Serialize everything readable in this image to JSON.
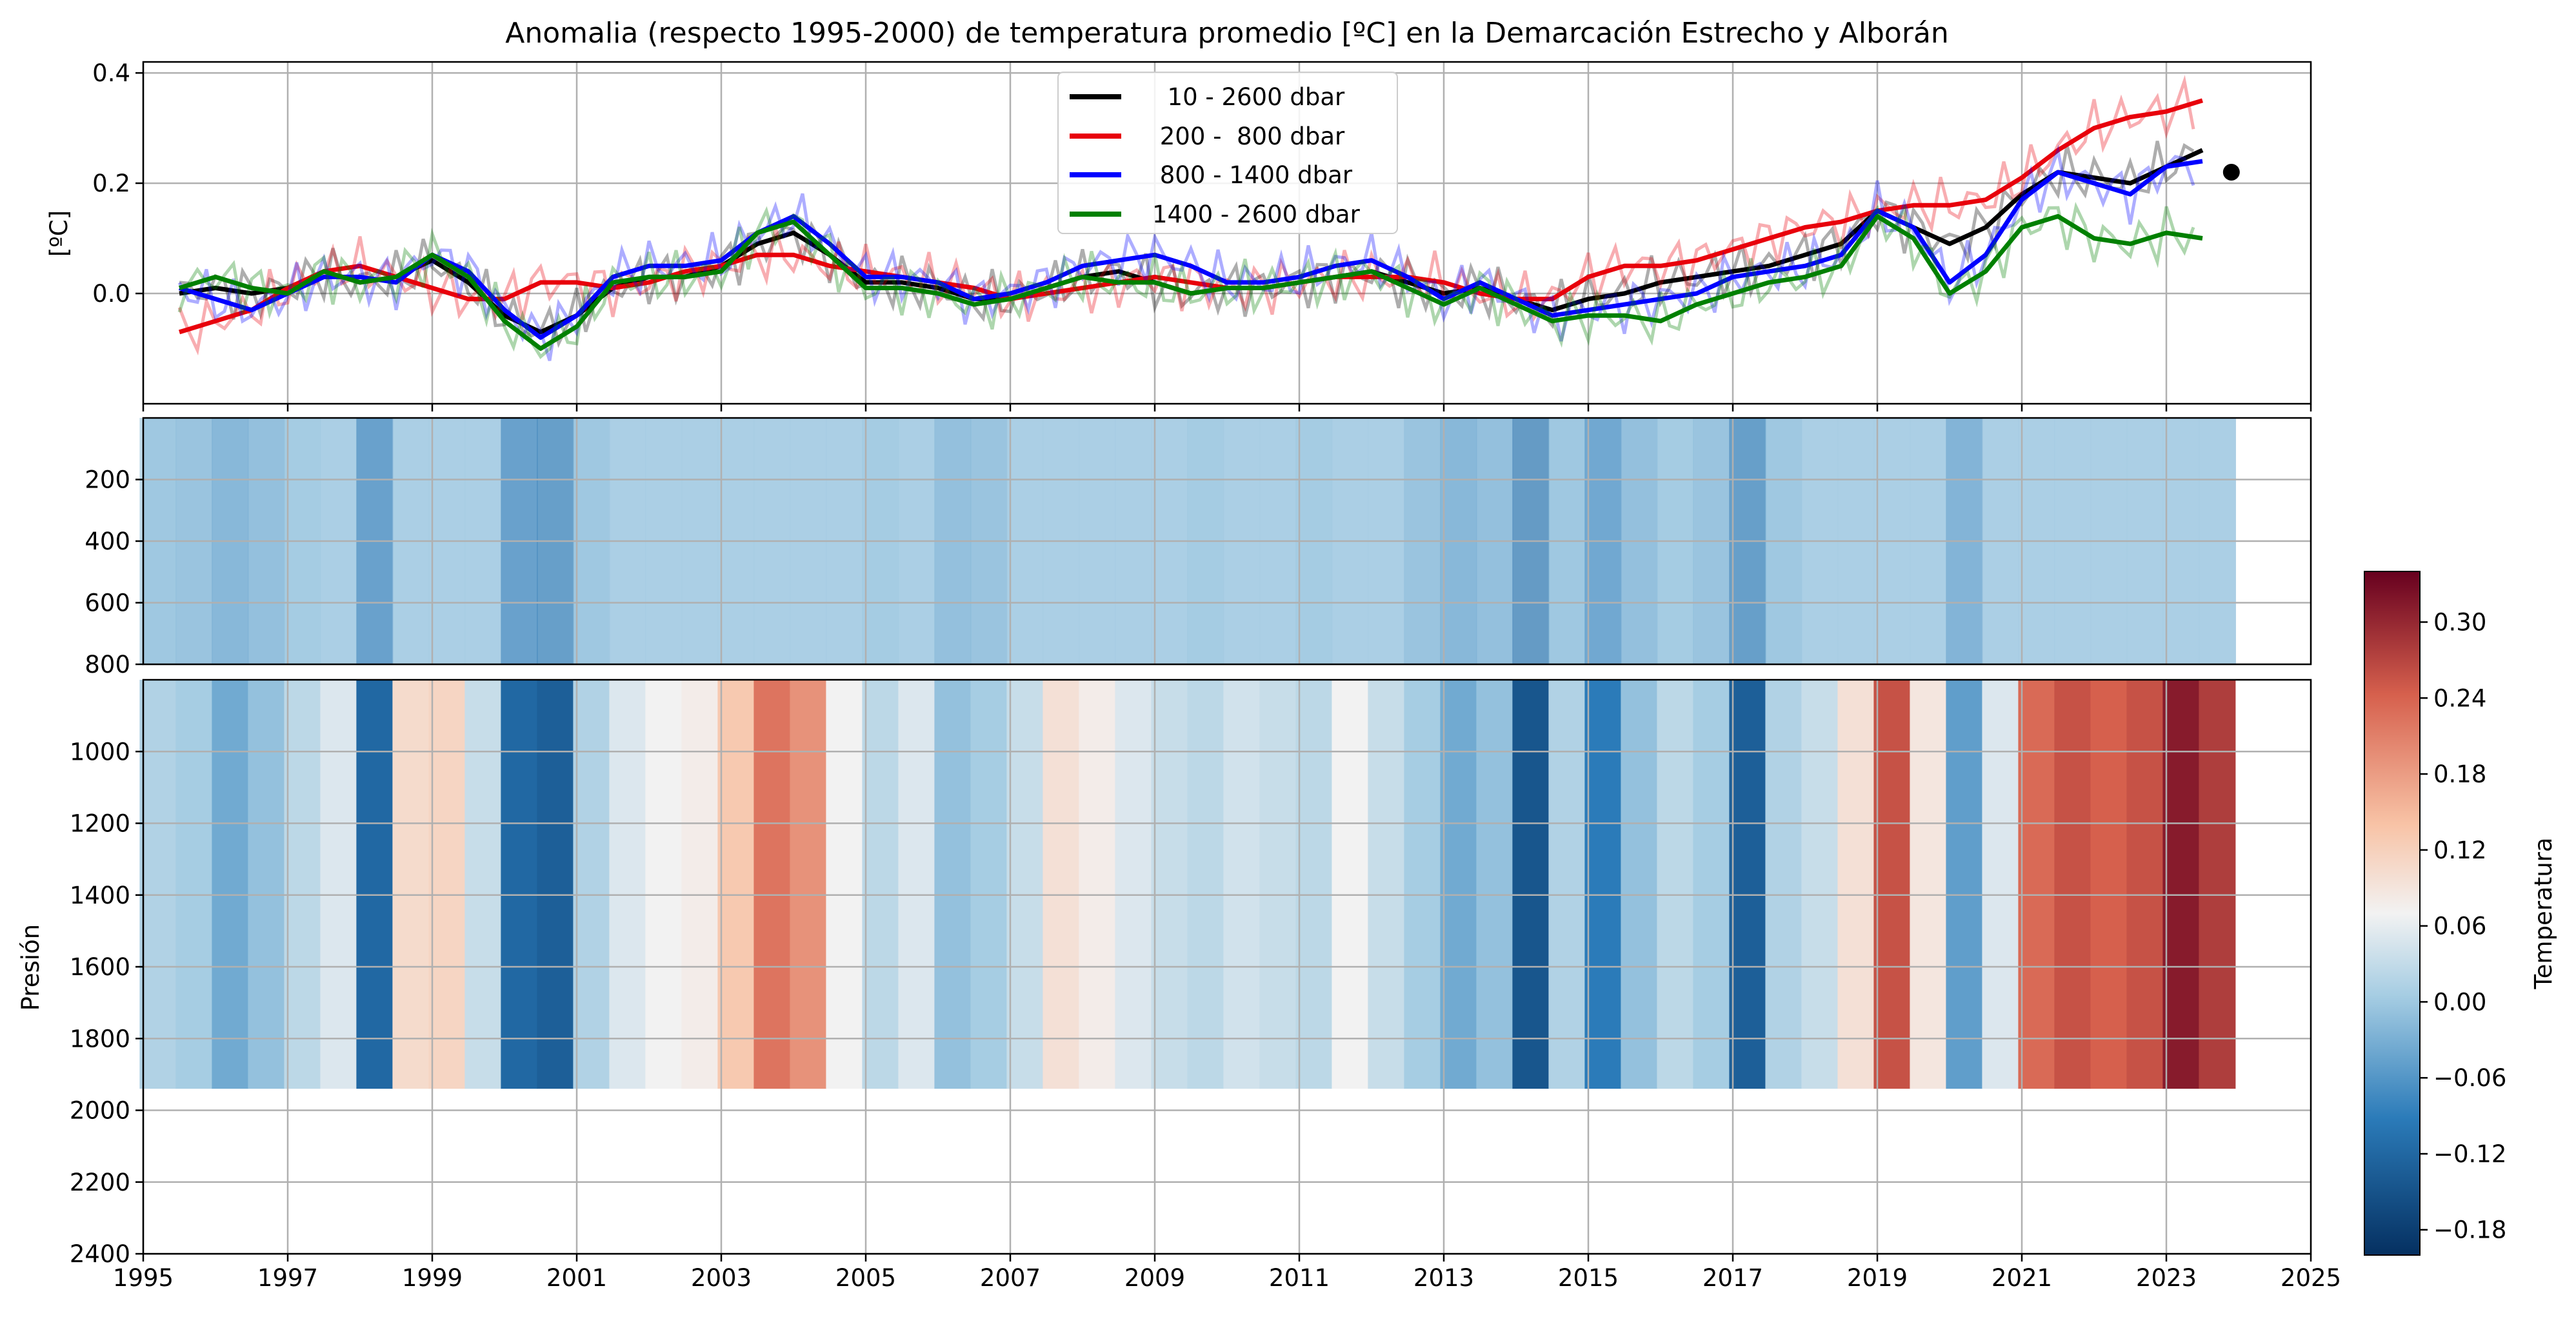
{
  "chart_data": {
    "title": "Anomalia (respecto 1995-2000) de temperatura promedio [ºC] en la Demarcación Estrecho y Alborán",
    "panels": [
      {
        "type": "line",
        "ylabel": "[ºC]",
        "xlim": [
          1995,
          2025
        ],
        "ylim": [
          -0.2,
          0.42
        ],
        "yticks": [
          "0.0",
          "0.2",
          "0.4"
        ],
        "grid": true,
        "legend_position": "top-center",
        "legend": [
          "  10 - 2600 dbar",
          " 200 -  800 dbar",
          " 800 - 1400 dbar",
          "1400 - 2600 dbar"
        ],
        "series": [
          {
            "name": "  10 - 2600 dbar",
            "color": "#000000",
            "x": [
              1995.5,
              1996,
              1996.5,
              1997,
              1997.5,
              1998,
              1998.5,
              1999,
              1999.5,
              2000,
              2000.5,
              2001,
              2001.5,
              2002,
              2002.5,
              2003,
              2003.5,
              2004,
              2004.5,
              2005,
              2005.5,
              2006,
              2006.5,
              2007,
              2007.5,
              2008,
              2008.5,
              2009,
              2009.5,
              2010,
              2010.5,
              2011,
              2011.5,
              2012,
              2012.5,
              2013,
              2013.5,
              2014,
              2014.5,
              2015,
              2015.5,
              2016,
              2016.5,
              2017,
              2017.5,
              2018,
              2018.5,
              2019,
              2019.5,
              2020,
              2020.5,
              2021,
              2021.5,
              2022,
              2022.5,
              2023,
              2023.5
            ],
            "y": [
              0.0,
              0.01,
              0.0,
              0.01,
              0.04,
              0.02,
              0.03,
              0.06,
              0.02,
              -0.04,
              -0.07,
              -0.04,
              0.01,
              0.03,
              0.03,
              0.05,
              0.09,
              0.11,
              0.07,
              0.02,
              0.02,
              0.01,
              -0.01,
              -0.01,
              0.01,
              0.03,
              0.04,
              0.02,
              0.0,
              0.01,
              0.01,
              0.02,
              0.03,
              0.04,
              0.02,
              0.0,
              0.01,
              -0.01,
              -0.03,
              -0.01,
              0.0,
              0.02,
              0.03,
              0.04,
              0.05,
              0.07,
              0.09,
              0.15,
              0.12,
              0.09,
              0.12,
              0.18,
              0.22,
              0.21,
              0.2,
              0.23,
              0.26
            ]
          },
          {
            "name": " 200 -  800 dbar",
            "color": "#e8000b",
            "x": [
              1995.5,
              1996,
              1996.5,
              1997,
              1997.5,
              1998,
              1998.5,
              1999,
              1999.5,
              2000,
              2000.5,
              2001,
              2001.5,
              2002,
              2002.5,
              2003,
              2003.5,
              2004,
              2004.5,
              2005,
              2005.5,
              2006,
              2006.5,
              2007,
              2007.5,
              2008,
              2008.5,
              2009,
              2009.5,
              2010,
              2010.5,
              2011,
              2011.5,
              2012,
              2012.5,
              2013,
              2013.5,
              2014,
              2014.5,
              2015,
              2015.5,
              2016,
              2016.5,
              2017,
              2017.5,
              2018,
              2018.5,
              2019,
              2019.5,
              2020,
              2020.5,
              2021,
              2021.5,
              2022,
              2022.5,
              2023,
              2023.5
            ],
            "y": [
              -0.07,
              -0.05,
              -0.03,
              0.01,
              0.04,
              0.05,
              0.03,
              0.01,
              -0.01,
              -0.01,
              0.02,
              0.02,
              0.01,
              0.02,
              0.04,
              0.05,
              0.07,
              0.07,
              0.05,
              0.04,
              0.03,
              0.02,
              0.01,
              -0.01,
              0.0,
              0.01,
              0.02,
              0.03,
              0.02,
              0.01,
              0.01,
              0.02,
              0.03,
              0.03,
              0.03,
              0.02,
              0.0,
              -0.01,
              -0.01,
              0.03,
              0.05,
              0.05,
              0.06,
              0.08,
              0.1,
              0.12,
              0.13,
              0.15,
              0.16,
              0.16,
              0.17,
              0.21,
              0.26,
              0.3,
              0.32,
              0.33,
              0.35
            ]
          },
          {
            "name": " 800 - 1400 dbar",
            "color": "#0000ff",
            "x": [
              1995.5,
              1996,
              1996.5,
              1997,
              1997.5,
              1998,
              1998.5,
              1999,
              1999.5,
              2000,
              2000.5,
              2001,
              2001.5,
              2002,
              2002.5,
              2003,
              2003.5,
              2004,
              2004.5,
              2005,
              2005.5,
              2006,
              2006.5,
              2007,
              2007.5,
              2008,
              2008.5,
              2009,
              2009.5,
              2010,
              2010.5,
              2011,
              2011.5,
              2012,
              2012.5,
              2013,
              2013.5,
              2014,
              2014.5,
              2015,
              2015.5,
              2016,
              2016.5,
              2017,
              2017.5,
              2018,
              2018.5,
              2019,
              2019.5,
              2020,
              2020.5,
              2021,
              2021.5,
              2022,
              2022.5,
              2023,
              2023.5
            ],
            "y": [
              0.01,
              -0.01,
              -0.03,
              0.0,
              0.03,
              0.03,
              0.02,
              0.07,
              0.04,
              -0.03,
              -0.08,
              -0.04,
              0.03,
              0.05,
              0.05,
              0.06,
              0.11,
              0.14,
              0.09,
              0.03,
              0.03,
              0.02,
              -0.01,
              0.0,
              0.02,
              0.05,
              0.06,
              0.07,
              0.05,
              0.02,
              0.02,
              0.03,
              0.05,
              0.06,
              0.03,
              -0.01,
              0.02,
              -0.01,
              -0.04,
              -0.03,
              -0.02,
              -0.01,
              0.0,
              0.03,
              0.04,
              0.05,
              0.07,
              0.15,
              0.12,
              0.02,
              0.07,
              0.17,
              0.22,
              0.2,
              0.18,
              0.23,
              0.24
            ]
          },
          {
            "name": "1400 - 2600 dbar",
            "color": "#008000",
            "x": [
              1995.5,
              1996,
              1996.5,
              1997,
              1997.5,
              1998,
              1998.5,
              1999,
              1999.5,
              2000,
              2000.5,
              2001,
              2001.5,
              2002,
              2002.5,
              2003,
              2003.5,
              2004,
              2004.5,
              2005,
              2005.5,
              2006,
              2006.5,
              2007,
              2007.5,
              2008,
              2008.5,
              2009,
              2009.5,
              2010,
              2010.5,
              2011,
              2011.5,
              2012,
              2012.5,
              2013,
              2013.5,
              2014,
              2014.5,
              2015,
              2015.5,
              2016,
              2016.5,
              2017,
              2017.5,
              2018,
              2018.5,
              2019,
              2019.5,
              2020,
              2020.5,
              2021,
              2021.5,
              2022,
              2022.5,
              2023,
              2023.5
            ],
            "y": [
              0.01,
              0.03,
              0.01,
              0.0,
              0.04,
              0.02,
              0.03,
              0.07,
              0.03,
              -0.05,
              -0.1,
              -0.06,
              0.02,
              0.03,
              0.03,
              0.04,
              0.11,
              0.13,
              0.07,
              0.01,
              0.01,
              0.0,
              -0.02,
              -0.01,
              0.01,
              0.03,
              0.02,
              0.02,
              0.0,
              0.01,
              0.01,
              0.02,
              0.03,
              0.04,
              0.01,
              -0.02,
              0.01,
              -0.02,
              -0.05,
              -0.04,
              -0.04,
              -0.05,
              -0.02,
              0.0,
              0.02,
              0.03,
              0.05,
              0.14,
              0.1,
              0.0,
              0.04,
              0.12,
              0.14,
              0.1,
              0.09,
              0.11,
              0.1
            ]
          }
        ],
        "marker_point": {
          "x": 2023.9,
          "y": 0.22,
          "color": "#000000"
        }
      },
      {
        "type": "heatmap",
        "ylim": [
          0,
          800
        ],
        "yticks": [
          "200",
          "400",
          "600",
          "800"
        ]
      },
      {
        "type": "heatmap",
        "ylabel": "Presión",
        "ylim": [
          800,
          2400
        ],
        "yticks": [
          "1000",
          "1200",
          "1400",
          "1600",
          "1800",
          "2000",
          "2200",
          "2400"
        ],
        "columns": {
          "x": [
            1995.2,
            1995.7,
            1996.2,
            1996.7,
            1997.2,
            1997.7,
            1998.2,
            1998.7,
            1999.2,
            1999.7,
            2000.2,
            2000.7,
            2001.2,
            2001.7,
            2002.2,
            2002.7,
            2003.2,
            2003.7,
            2004.2,
            2004.7,
            2005.2,
            2005.7,
            2006.2,
            2006.7,
            2007.2,
            2007.7,
            2008.2,
            2008.7,
            2009.2,
            2009.7,
            2010.2,
            2010.7,
            2011.2,
            2011.7,
            2012.2,
            2012.7,
            2013.2,
            2013.7,
            2014.2,
            2014.7,
            2015.2,
            2015.7,
            2016.2,
            2016.7,
            2017.2,
            2017.7,
            2018.2,
            2018.7,
            2019.2,
            2019.7,
            2020.2,
            2020.7,
            2021.2,
            2021.7,
            2022.2,
            2022.7,
            2023.2,
            2023.7
          ],
          "anomaly": [
            -0.04,
            -0.05,
            -0.08,
            -0.06,
            -0.03,
            0.0,
            -0.14,
            0.06,
            0.07,
            -0.02,
            -0.14,
            -0.15,
            -0.04,
            0.0,
            0.02,
            0.03,
            0.09,
            0.18,
            0.15,
            0.02,
            -0.03,
            0.0,
            -0.06,
            -0.05,
            -0.02,
            0.05,
            0.03,
            0.0,
            -0.02,
            -0.03,
            -0.01,
            -0.02,
            -0.03,
            0.02,
            -0.02,
            -0.05,
            -0.08,
            -0.06,
            -0.16,
            -0.04,
            -0.12,
            -0.06,
            -0.03,
            -0.05,
            -0.15,
            -0.04,
            -0.02,
            0.05,
            0.22,
            0.04,
            -0.09,
            0.0,
            0.19,
            0.22,
            0.2,
            0.22,
            0.3,
            0.25
          ]
        }
      }
    ],
    "xlim": [
      1995,
      2025
    ],
    "xticks": [
      "1995",
      "1997",
      "1999",
      "2001",
      "2003",
      "2005",
      "2007",
      "2009",
      "2011",
      "2013",
      "2015",
      "2017",
      "2019",
      "2021",
      "2023",
      "2025"
    ],
    "colorbar": {
      "label": "Temperatura",
      "range": [
        -0.2,
        0.34
      ],
      "ticks": [
        "0.30",
        "0.24",
        "0.18",
        "0.12",
        "0.06",
        "0.00",
        "−0.06",
        "−0.12",
        "−0.18"
      ]
    }
  }
}
